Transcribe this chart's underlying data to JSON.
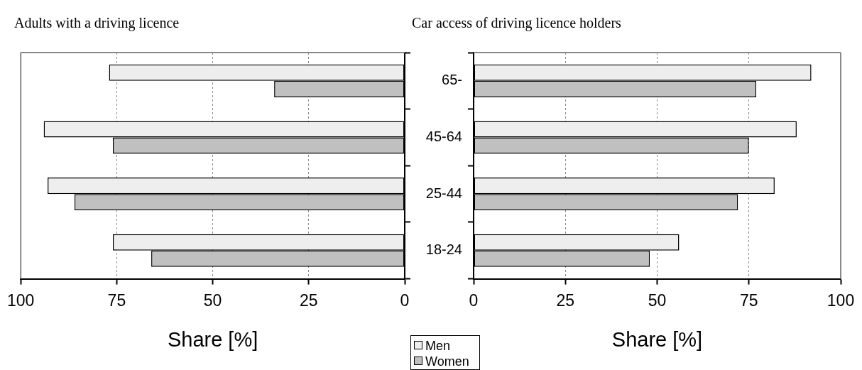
{
  "chart_data": [
    {
      "type": "bar",
      "orientation": "horizontal",
      "title": "Adults with a driving licence",
      "xlabel": "Share [%]",
      "categories": [
        null,
        null,
        null,
        null
      ],
      "xlim": [
        100,
        0
      ],
      "xticks": [
        100,
        75,
        50,
        25,
        0
      ],
      "grid": "x",
      "tick_labels": "x",
      "series": [
        {
          "color": "#eeeeee",
          "values": [
            77,
            94,
            93,
            76
          ]
        },
        {
          "color": "#c0c0c0",
          "values": [
            34,
            76,
            86,
            66
          ]
        }
      ]
    },
    {
      "type": "bar",
      "orientation": "horizontal",
      "title": "Car access of driving licence holders",
      "xlabel": "Share [%]",
      "categories": [
        "65-",
        "45-64",
        "25-44",
        "18-24"
      ],
      "xlim": [
        0,
        100
      ],
      "xticks": [
        0,
        25,
        50,
        75,
        100
      ],
      "grid": "x",
      "legend": "bottom left",
      "series": [
        {
          "name": "Men",
          "color": "#eeeeee",
          "values": [
            92,
            88,
            82,
            56
          ]
        },
        {
          "name": "Women",
          "color": "#c0c0c0",
          "values": [
            77,
            75,
            72,
            48
          ]
        }
      ]
    }
  ]
}
